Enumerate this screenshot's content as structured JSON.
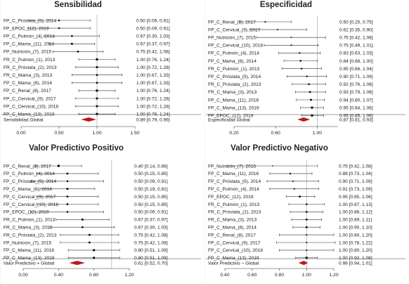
{
  "chart_data": [
    {
      "type": "forest",
      "title": "Sensibilidad",
      "xlim": [
        0.0,
        1.5
      ],
      "ticks": [
        "0.00",
        "0.50",
        "1.00",
        "1.50"
      ],
      "ref_line": 1.0,
      "rows": [
        {
          "label": "FP_C_Próstata_(5), 2014",
          "est": 0.5,
          "lo": 0.09,
          "hi": 0.91,
          "text": "0.50 [0.09, 0.91]"
        },
        {
          "label": "FP_EPOC_(12), 2019",
          "est": 0.5,
          "lo": 0.09,
          "hi": 0.91,
          "text": "0.50 [0.09, 0.91]"
        },
        {
          "label": "FP_C_Pulmón_(4), 2014",
          "est": 0.67,
          "lo": 0.3,
          "hi": 1.03,
          "text": "0.67 [0.30, 1.03]"
        },
        {
          "label": "FP_C_Mama_(11), 2018",
          "est": 0.67,
          "lo": 0.37,
          "hi": 0.97,
          "text": "0.67 [0.37, 0.97]"
        },
        {
          "label": "FP_Nutrición_(7), 2015",
          "est": 0.75,
          "lo": 0.42,
          "hi": 1.08,
          "text": "0.75 [0.42, 1.08]"
        },
        {
          "label": "FR_C_Pulmón_(1), 2013",
          "est": 1.0,
          "lo": 0.76,
          "hi": 1.24,
          "text": "1.00 [0.76, 1.24]"
        },
        {
          "label": "FR_C_Próstata_(2), 2013",
          "est": 1.0,
          "lo": 0.72,
          "hi": 1.28,
          "text": "1.00 [0.72, 1.28]"
        },
        {
          "label": "FR_C_Mama_(3), 2013",
          "est": 1.0,
          "lo": 0.67,
          "hi": 1.33,
          "text": "1.00 [0.67, 1.33]"
        },
        {
          "label": "FP_C_Mama_(6), 2014",
          "est": 1.0,
          "lo": 0.67,
          "hi": 1.33,
          "text": "1.00 [0.67, 1.33]"
        },
        {
          "label": "FP_C_Renal_(8), 2017",
          "est": 1.0,
          "lo": 0.76,
          "hi": 1.24,
          "text": "1.00 [0.76, 1.24]"
        },
        {
          "label": "FP_C_Cervical_(9), 2017",
          "est": 1.0,
          "lo": 0.72,
          "hi": 1.28,
          "text": "1.00 [0.72, 1.28]"
        },
        {
          "label": "FP_C_Cervical_(10), 2018",
          "est": 1.0,
          "lo": 0.72,
          "hi": 1.28,
          "text": "1.00 [0.72, 1.28]"
        },
        {
          "label": "FP_C_Mama_(13), 2019",
          "est": 1.0,
          "lo": 0.76,
          "hi": 1.24,
          "text": "1.00 [0.76, 1.24]"
        }
      ],
      "summary": {
        "label": "Sensibilidad Global",
        "est": 0.89,
        "lo": 0.79,
        "hi": 0.99,
        "text": "0.89 [0.79, 0.99]"
      }
    },
    {
      "type": "forest",
      "title": "Especificidad",
      "xlim": [
        0.2,
        1.2
      ],
      "ticks": [
        "0.20",
        "0.60",
        "1.00"
      ],
      "ref_line": 1.0,
      "rows": [
        {
          "label": "FP_C_Renal_(8), 2017",
          "est": 0.5,
          "lo": 0.25,
          "hi": 0.75,
          "text": "0.50 [0.25, 0.75]"
        },
        {
          "label": "FP_C_Cervical_(9), 2017",
          "est": 0.62,
          "lo": 0.35,
          "hi": 0.9,
          "text": "0.62 [0.35, 0.90]"
        },
        {
          "label": "FP_Nutrición_(7), 2015",
          "est": 0.75,
          "lo": 0.42,
          "hi": 1.08,
          "text": "0.75 [0.42, 1.08]"
        },
        {
          "label": "FP_C_Cervical_(10), 2018",
          "est": 0.75,
          "lo": 0.49,
          "hi": 1.01,
          "text": "0.75 [0.49, 1.01]"
        },
        {
          "label": "FP_C_Pulmón_(4), 2014",
          "est": 0.83,
          "lo": 0.63,
          "hi": 1.03,
          "text": "0.83 [0.63, 1.03]"
        },
        {
          "label": "FP_C_Mama_(6), 2014",
          "est": 0.84,
          "lo": 0.68,
          "hi": 1.0,
          "text": "0.84 [0.68, 1.00]"
        },
        {
          "label": "FR_C_Pulmón_(1), 2013",
          "est": 0.85,
          "lo": 0.66,
          "hi": 1.04,
          "text": "0.85 [0.66, 1.04]"
        },
        {
          "label": "FP_C_Próstata_(5), 2014",
          "est": 0.9,
          "lo": 0.71,
          "hi": 1.09,
          "text": "0.90 [0.71, 1.09]"
        },
        {
          "label": "FR_C_Próstata_(2), 2013",
          "est": 0.92,
          "lo": 0.76,
          "hi": 1.08,
          "text": "0.92 [0.76, 1.08]"
        },
        {
          "label": "FR_C_Mama_(3), 2013",
          "est": 0.93,
          "lo": 0.79,
          "hi": 1.08,
          "text": "0.93 [0.79, 1.08]"
        },
        {
          "label": "FP_C_Mama_(11), 2018",
          "est": 0.94,
          "lo": 0.8,
          "hi": 1.07,
          "text": "0.94 [0.80, 1.07]"
        },
        {
          "label": "FP_C_Mama_(13), 2019",
          "est": 0.95,
          "lo": 0.84,
          "hi": 1.06,
          "text": "0.95 [0.84, 1.06]"
        },
        {
          "label": "FP_EPOC_(12), 2019",
          "est": 0.95,
          "lo": 0.85,
          "hi": 1.06,
          "text": "0.95 [0.85, 1.06]"
        }
      ],
      "summary": {
        "label": "Especificidad Global",
        "est": 0.87,
        "lo": 0.81,
        "hi": 0.93,
        "text": "0.87 [0.81, 0.93]"
      }
    },
    {
      "type": "forest",
      "title": "Valor Predictivo Positivo",
      "xlim": [
        0.0,
        1.2
      ],
      "ticks": [
        "0.00",
        "0.40",
        "0.80",
        "1.20"
      ],
      "ref_line": 1.0,
      "rows": [
        {
          "label": "FP_C_Renal_(8), 2017",
          "est": 0.4,
          "lo": 0.14,
          "hi": 0.66,
          "text": "0.40 [0.14, 0.66]"
        },
        {
          "label": "FP_C_Pulmón_(4), 2014",
          "est": 0.5,
          "lo": 0.15,
          "hi": 0.85,
          "text": "0.50 [0.15, 0.85]"
        },
        {
          "label": "FP_C_Próstata_(5), 2014",
          "est": 0.5,
          "lo": 0.09,
          "hi": 0.91,
          "text": "0.50 [0.09, 0.91]"
        },
        {
          "label": "FP_C_Mama_(6), 2014",
          "est": 0.5,
          "lo": 0.19,
          "hi": 0.81,
          "text": "0.50 [0.19, 0.81]"
        },
        {
          "label": "FP_C_Cervical_(9), 2017",
          "est": 0.5,
          "lo": 0.15,
          "hi": 0.85,
          "text": "0.50 [0.15, 0.85]"
        },
        {
          "label": "FP_C_Cervical_(10), 2018",
          "est": 0.5,
          "lo": 0.15,
          "hi": 0.85,
          "text": "0.50 [0.15, 0.85]"
        },
        {
          "label": "FP_EPOC_(12), 2019",
          "est": 0.5,
          "lo": 0.09,
          "hi": 0.91,
          "text": "0.50 [0.09, 0.91]"
        },
        {
          "label": "FR_C_Pulmón_(1), 2013",
          "est": 0.67,
          "lo": 0.37,
          "hi": 0.97,
          "text": "0.67 [0.37, 0.97]"
        },
        {
          "label": "FR_C_Mama_(3), 2013",
          "est": 0.67,
          "lo": 0.3,
          "hi": 1.03,
          "text": "0.67 [0.30, 1.03]"
        },
        {
          "label": "FR_C_Próstata_(2), 2013",
          "est": 0.75,
          "lo": 0.42,
          "hi": 1.08,
          "text": "0.75 [0.42, 1.08]"
        },
        {
          "label": "FP_Nutrición_(7), 2015",
          "est": 0.75,
          "lo": 0.42,
          "hi": 1.08,
          "text": "0.75 [0.42, 1.08]"
        },
        {
          "label": "FP_C_Mama_(11), 2018",
          "est": 0.8,
          "lo": 0.51,
          "hi": 1.09,
          "text": "0.80 [0.51, 1.09]"
        },
        {
          "label": "FP_C_Mama_(13), 2019",
          "est": 0.8,
          "lo": 0.51,
          "hi": 1.09,
          "text": "0.80 [0.51, 1.09]"
        }
      ],
      "summary": {
        "label": "Valor Predictivo + Global",
        "est": 0.61,
        "lo": 0.52,
        "hi": 0.7,
        "text": "0.61 [0.52, 0.70]"
      }
    },
    {
      "type": "forest",
      "title": "Valor Predictivo Negativo",
      "xlim": [
        0.4,
        1.2
      ],
      "ticks": [
        "0.40",
        "0.60",
        "0.80",
        "1.00",
        "1.20"
      ],
      "ref_line": 1.0,
      "rows": [
        {
          "label": "FP_Nutrición_(7), 2015",
          "est": 0.75,
          "lo": 0.42,
          "hi": 1.08,
          "text": "0.75 [0.42, 1.08]"
        },
        {
          "label": "FP_C_Mama_(11), 2018",
          "est": 0.88,
          "lo": 0.73,
          "hi": 1.04,
          "text": "0.88 [0.73, 1.04]"
        },
        {
          "label": "FP_C_Próstata_(5), 2014",
          "est": 0.9,
          "lo": 0.71,
          "hi": 1.09,
          "text": "0.90 [0.71, 1.09]"
        },
        {
          "label": "FP_C_Pulmón_(4), 2014",
          "est": 0.91,
          "lo": 0.73,
          "hi": 1.09,
          "text": "0.91 [0.73, 1.09]"
        },
        {
          "label": "FP_EPOC_(12), 2019",
          "est": 0.95,
          "lo": 0.85,
          "hi": 1.06,
          "text": "0.95 [0.85, 1.06]"
        },
        {
          "label": "FR_C_Pulmón_(1), 2013",
          "est": 1.0,
          "lo": 0.87,
          "hi": 1.13,
          "text": "1.00 [0.87, 1.13]"
        },
        {
          "label": "FR_C_Próstata_(2), 2013",
          "est": 1.0,
          "lo": 0.88,
          "hi": 1.12,
          "text": "1.00 [0.88, 1.12]"
        },
        {
          "label": "FR_C_Mama_(3), 2013",
          "est": 1.0,
          "lo": 0.89,
          "hi": 1.11,
          "text": "1.00 [0.89, 1.11]"
        },
        {
          "label": "FP_C_Mama_(6), 2014",
          "est": 1.0,
          "lo": 0.9,
          "hi": 1.1,
          "text": "1.00 [0.90, 1.10]"
        },
        {
          "label": "FP_C_Renal_(8), 2017",
          "est": 1.0,
          "lo": 0.8,
          "hi": 1.2,
          "text": "1.00 [0.80, 1.20]"
        },
        {
          "label": "FP_C_Cervical_(9), 2017",
          "est": 1.0,
          "lo": 0.78,
          "hi": 1.22,
          "text": "1.00 [0.78, 1.22]"
        },
        {
          "label": "FP_C_Cervical_(10), 2018",
          "est": 1.0,
          "lo": 0.8,
          "hi": 1.2,
          "text": "1.00 [0.80, 1.20]"
        },
        {
          "label": "FP_C_Mama_(13), 2019",
          "est": 1.0,
          "lo": 0.92,
          "hi": 1.08,
          "text": "1.00 [0.92, 1.08]"
        }
      ],
      "summary": {
        "label": "Valor Predictivo − Global",
        "est": 0.98,
        "lo": 0.94,
        "hi": 1.01,
        "text": "0.98 [0.94, 1.01]"
      }
    }
  ],
  "colors": {
    "summary_diamond": "#c0141c",
    "point": "#000000",
    "ref_line": "#aaaaaa"
  }
}
